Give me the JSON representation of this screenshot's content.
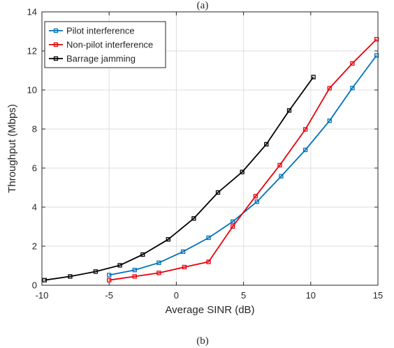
{
  "figure": {
    "top_caption": "(a)",
    "bottom_caption": "(b)"
  },
  "chart_data": {
    "type": "line",
    "title": "",
    "xlabel": "Average SINR (dB)",
    "ylabel": "Throughput (Mbps)",
    "xlim": [
      -10,
      15
    ],
    "ylim": [
      0,
      14
    ],
    "xticks": [
      -10,
      -5,
      0,
      5,
      10,
      15
    ],
    "yticks": [
      0,
      2,
      4,
      6,
      8,
      10,
      12,
      14
    ],
    "xtick_labels": [
      "-10",
      "-5",
      "0",
      "5",
      "10",
      "15"
    ],
    "ytick_labels": [
      "0",
      "2",
      "4",
      "6",
      "8",
      "10",
      "12",
      "14"
    ],
    "grid": true,
    "legend_position": "top-left",
    "marker": "square",
    "series": [
      {
        "name": "Pilot interference",
        "color": "#0072bd",
        "x": [
          -5.0,
          -3.1,
          -1.3,
          0.5,
          2.4,
          4.2,
          6.0,
          7.8,
          9.6,
          11.4,
          13.1,
          14.9
        ],
        "y": [
          0.52,
          0.78,
          1.15,
          1.72,
          2.43,
          3.26,
          4.28,
          5.58,
          6.93,
          8.42,
          10.1,
          11.77
        ]
      },
      {
        "name": "Non-pilot interference",
        "color": "#e8000b",
        "x": [
          -5.0,
          -3.1,
          -1.3,
          0.6,
          2.4,
          4.2,
          5.9,
          7.7,
          9.6,
          11.4,
          13.1,
          14.9
        ],
        "y": [
          0.26,
          0.45,
          0.63,
          0.93,
          1.2,
          3.01,
          4.56,
          6.15,
          7.98,
          10.09,
          11.36,
          12.6
        ]
      },
      {
        "name": "Barrage jamming",
        "color": "#000000",
        "x": [
          -9.8,
          -7.9,
          -6.0,
          -4.2,
          -2.5,
          -0.6,
          1.3,
          3.1,
          4.9,
          6.7,
          8.4,
          10.2
        ],
        "y": [
          0.26,
          0.45,
          0.7,
          1.02,
          1.57,
          2.35,
          3.42,
          4.75,
          5.8,
          7.22,
          8.95,
          10.66
        ]
      }
    ]
  }
}
